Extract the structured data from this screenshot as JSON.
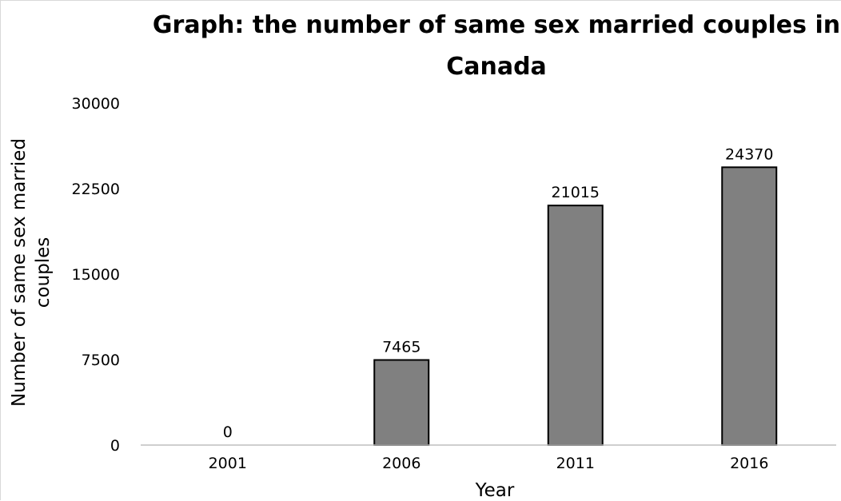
{
  "chart_data": {
    "type": "bar",
    "title": "Graph: the number of same sex married couples in Canada",
    "title_lines": [
      "Graph: the number of same sex married couples in",
      "Canada"
    ],
    "xlabel": "Year",
    "ylabel": "Number of same sex married couples",
    "ylabel_lines": [
      "Number of same sex married",
      "couples"
    ],
    "categories": [
      "2001",
      "2006",
      "2011",
      "2016"
    ],
    "values": [
      0,
      7465,
      21015,
      24370
    ],
    "data_labels": [
      "0",
      "7465",
      "21015",
      "24370"
    ],
    "ylim": [
      0,
      30000
    ],
    "yticks": [
      0,
      7500,
      15000,
      22500,
      30000
    ],
    "ytick_labels": [
      "0",
      "7500",
      "15000",
      "22500",
      "30000"
    ],
    "grid": false,
    "legend": "none",
    "colors": {
      "bar_fill": "#808080",
      "bar_edge": "#000000",
      "baseline": "#bfbfbf",
      "text": "#000000"
    }
  }
}
